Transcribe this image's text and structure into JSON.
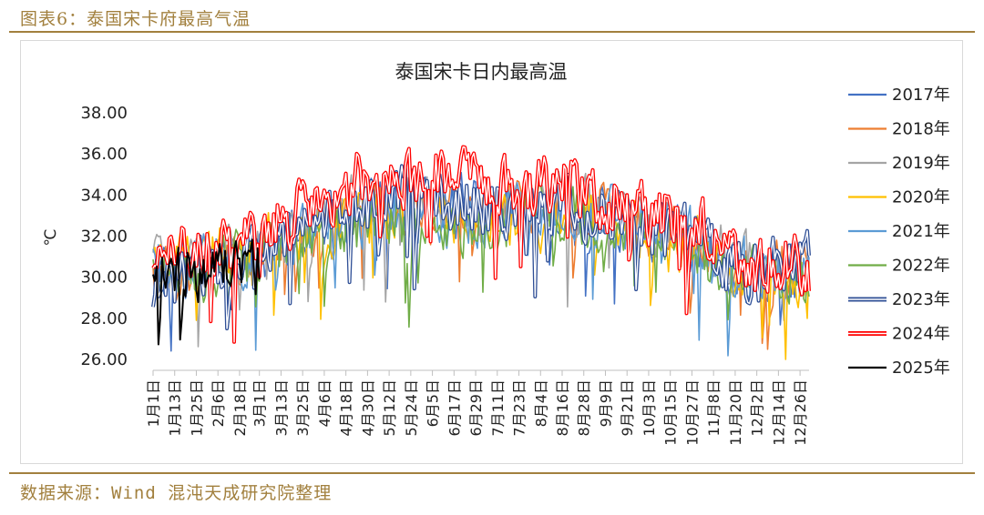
{
  "caption": "图表6：泰国宋卡府最高气温",
  "source": "数据来源：Wind 混沌天成研究院整理",
  "chart_data": {
    "type": "line",
    "title": "泰国宋卡日内最高温",
    "ylabel": "℃",
    "xlabel": "",
    "ylim": [
      26,
      38
    ],
    "yticks": [
      "38.00",
      "36.00",
      "34.00",
      "32.00",
      "30.00",
      "28.00",
      "26.00"
    ],
    "ytick_values": [
      38,
      36,
      34,
      32,
      30,
      28,
      26
    ],
    "xticks": [
      "1月1日",
      "1月13日",
      "1月25日",
      "2月6日",
      "2月18日",
      "3月1日",
      "3月13日",
      "3月25日",
      "4月6日",
      "4月18日",
      "4月30日",
      "5月12日",
      "5月24日",
      "6月5日",
      "6月17日",
      "6月29日",
      "7月11日",
      "7月23日",
      "8月4日",
      "8月16日",
      "8月28日",
      "9月9日",
      "9月21日",
      "10月3日",
      "10月15日",
      "10月27日",
      "11月8日",
      "11月20日",
      "12月2日",
      "12月14日",
      "12月26日"
    ],
    "xtick_days": [
      1,
      13,
      25,
      37,
      49,
      60,
      72,
      84,
      96,
      108,
      120,
      132,
      144,
      156,
      168,
      180,
      192,
      204,
      216,
      228,
      240,
      252,
      264,
      276,
      288,
      300,
      312,
      324,
      336,
      348,
      360
    ],
    "xlim": [
      1,
      365
    ],
    "legend_position": "right",
    "grid": false,
    "series": [
      {
        "name": "2017年",
        "color": "#4472c4",
        "style": "thin",
        "seed": 17,
        "days": [
          1,
          15,
          31,
          46,
          60,
          75,
          91,
          106,
          121,
          136,
          152,
          167,
          182,
          197,
          213,
          228,
          244,
          259,
          274,
          289,
          305,
          320,
          335,
          350,
          365
        ],
        "values": [
          30.2,
          30.5,
          30.6,
          30.9,
          31.2,
          31.8,
          32.6,
          33.1,
          33.6,
          33.8,
          33.7,
          33.5,
          33.3,
          33.1,
          33.2,
          33.4,
          33.1,
          32.7,
          32.3,
          32.0,
          31.6,
          30.8,
          30.4,
          30.2,
          30.4
        ]
      },
      {
        "name": "2018年",
        "color": "#ed7d31",
        "style": "thin",
        "seed": 18,
        "days": [
          1,
          15,
          31,
          46,
          60,
          75,
          91,
          106,
          121,
          136,
          152,
          167,
          182,
          197,
          213,
          228,
          244,
          259,
          274,
          289,
          305,
          320,
          335,
          350,
          365
        ],
        "values": [
          30.0,
          30.3,
          30.7,
          31.0,
          31.4,
          31.9,
          32.5,
          33.0,
          33.4,
          33.6,
          33.6,
          33.5,
          33.3,
          33.4,
          33.6,
          33.6,
          33.2,
          32.8,
          32.5,
          32.1,
          31.5,
          30.6,
          30.3,
          30.5,
          31.2
        ]
      },
      {
        "name": "2019年",
        "color": "#a5a5a5",
        "style": "thin",
        "seed": 19,
        "days": [
          1,
          15,
          31,
          46,
          60,
          75,
          91,
          106,
          121,
          136,
          152,
          167,
          182,
          197,
          213,
          228,
          244,
          259,
          274,
          289,
          305,
          320,
          335,
          350,
          365
        ],
        "values": [
          30.5,
          30.8,
          31.0,
          31.2,
          31.5,
          32.0,
          32.8,
          33.3,
          33.7,
          33.9,
          33.7,
          33.4,
          33.3,
          33.3,
          33.5,
          33.8,
          33.5,
          33.0,
          32.5,
          32.2,
          31.7,
          31.0,
          30.6,
          30.4,
          30.6
        ]
      },
      {
        "name": "2020年",
        "color": "#ffc000",
        "style": "thin",
        "seed": 20,
        "days": [
          1,
          15,
          31,
          46,
          60,
          75,
          91,
          106,
          121,
          136,
          152,
          167,
          182,
          197,
          213,
          228,
          244,
          259,
          274,
          289,
          305,
          320,
          335,
          350,
          365
        ],
        "values": [
          30.4,
          30.6,
          30.8,
          31.1,
          31.5,
          31.9,
          32.4,
          32.8,
          32.9,
          33.2,
          33.3,
          33.1,
          33.0,
          33.1,
          33.2,
          33.3,
          33.0,
          32.6,
          32.2,
          31.8,
          31.3,
          30.6,
          30.2,
          30.0,
          30.3
        ]
      },
      {
        "name": "2021年",
        "color": "#5b9bd5",
        "style": "thin",
        "seed": 21,
        "days": [
          1,
          15,
          31,
          46,
          60,
          75,
          91,
          106,
          121,
          136,
          152,
          167,
          182,
          197,
          213,
          228,
          244,
          259,
          274,
          289,
          305,
          320,
          335,
          350,
          365
        ],
        "values": [
          30.3,
          30.4,
          30.8,
          31.0,
          31.3,
          31.6,
          32.3,
          32.8,
          33.1,
          33.3,
          33.2,
          33.0,
          32.9,
          33.1,
          33.4,
          33.5,
          33.2,
          32.9,
          32.6,
          32.5,
          31.9,
          31.0,
          30.5,
          30.3,
          30.5
        ]
      },
      {
        "name": "2022年",
        "color": "#70ad47",
        "style": "thin",
        "seed": 22,
        "days": [
          1,
          15,
          31,
          46,
          60,
          75,
          91,
          106,
          121,
          136,
          152,
          167,
          182,
          197,
          213,
          228,
          244,
          259,
          274,
          289,
          305,
          320,
          335,
          350,
          365
        ],
        "values": [
          29.6,
          30.0,
          30.4,
          30.8,
          31.0,
          31.3,
          31.8,
          32.3,
          32.6,
          32.7,
          32.7,
          32.6,
          32.8,
          32.9,
          33.1,
          33.0,
          32.8,
          32.4,
          32.0,
          31.7,
          31.2,
          30.5,
          30.1,
          29.9,
          30.0
        ]
      },
      {
        "name": "2023年",
        "color": "#2f4f96",
        "style": "double",
        "seed": 23,
        "days": [
          1,
          15,
          31,
          46,
          60,
          75,
          91,
          106,
          121,
          136,
          152,
          167,
          182,
          197,
          213,
          228,
          244,
          259,
          274,
          289,
          305,
          320,
          335,
          350,
          365
        ],
        "values": [
          29.7,
          30.0,
          30.5,
          30.9,
          31.3,
          31.8,
          32.6,
          33.4,
          34.0,
          34.0,
          33.8,
          33.6,
          33.5,
          33.5,
          33.6,
          33.5,
          33.2,
          32.8,
          32.5,
          32.2,
          31.5,
          30.4,
          30.0,
          30.6,
          31.2
        ]
      },
      {
        "name": "2024年",
        "color": "#ff0000",
        "style": "double",
        "seed": 24,
        "days": [
          1,
          15,
          31,
          46,
          60,
          75,
          91,
          106,
          121,
          136,
          152,
          167,
          182,
          197,
          213,
          228,
          244,
          259,
          274,
          289,
          305,
          320,
          335,
          350,
          365
        ],
        "values": [
          31.4,
          31.2,
          31.2,
          31.5,
          32.1,
          32.8,
          33.5,
          34.2,
          35.0,
          35.0,
          34.8,
          35.0,
          34.4,
          34.2,
          34.3,
          34.6,
          34.0,
          33.6,
          33.0,
          33.3,
          32.4,
          31.2,
          30.6,
          30.8,
          30.2
        ]
      },
      {
        "name": "2025年",
        "color": "#000000",
        "style": "thin",
        "seed": 25,
        "days": [
          1,
          8,
          15,
          22,
          29,
          36,
          43,
          50,
          57,
          60
        ],
        "values": [
          30.9,
          30.6,
          30.2,
          30.4,
          30.1,
          30.7,
          30.6,
          30.8,
          30.4,
          30.7
        ]
      }
    ]
  }
}
